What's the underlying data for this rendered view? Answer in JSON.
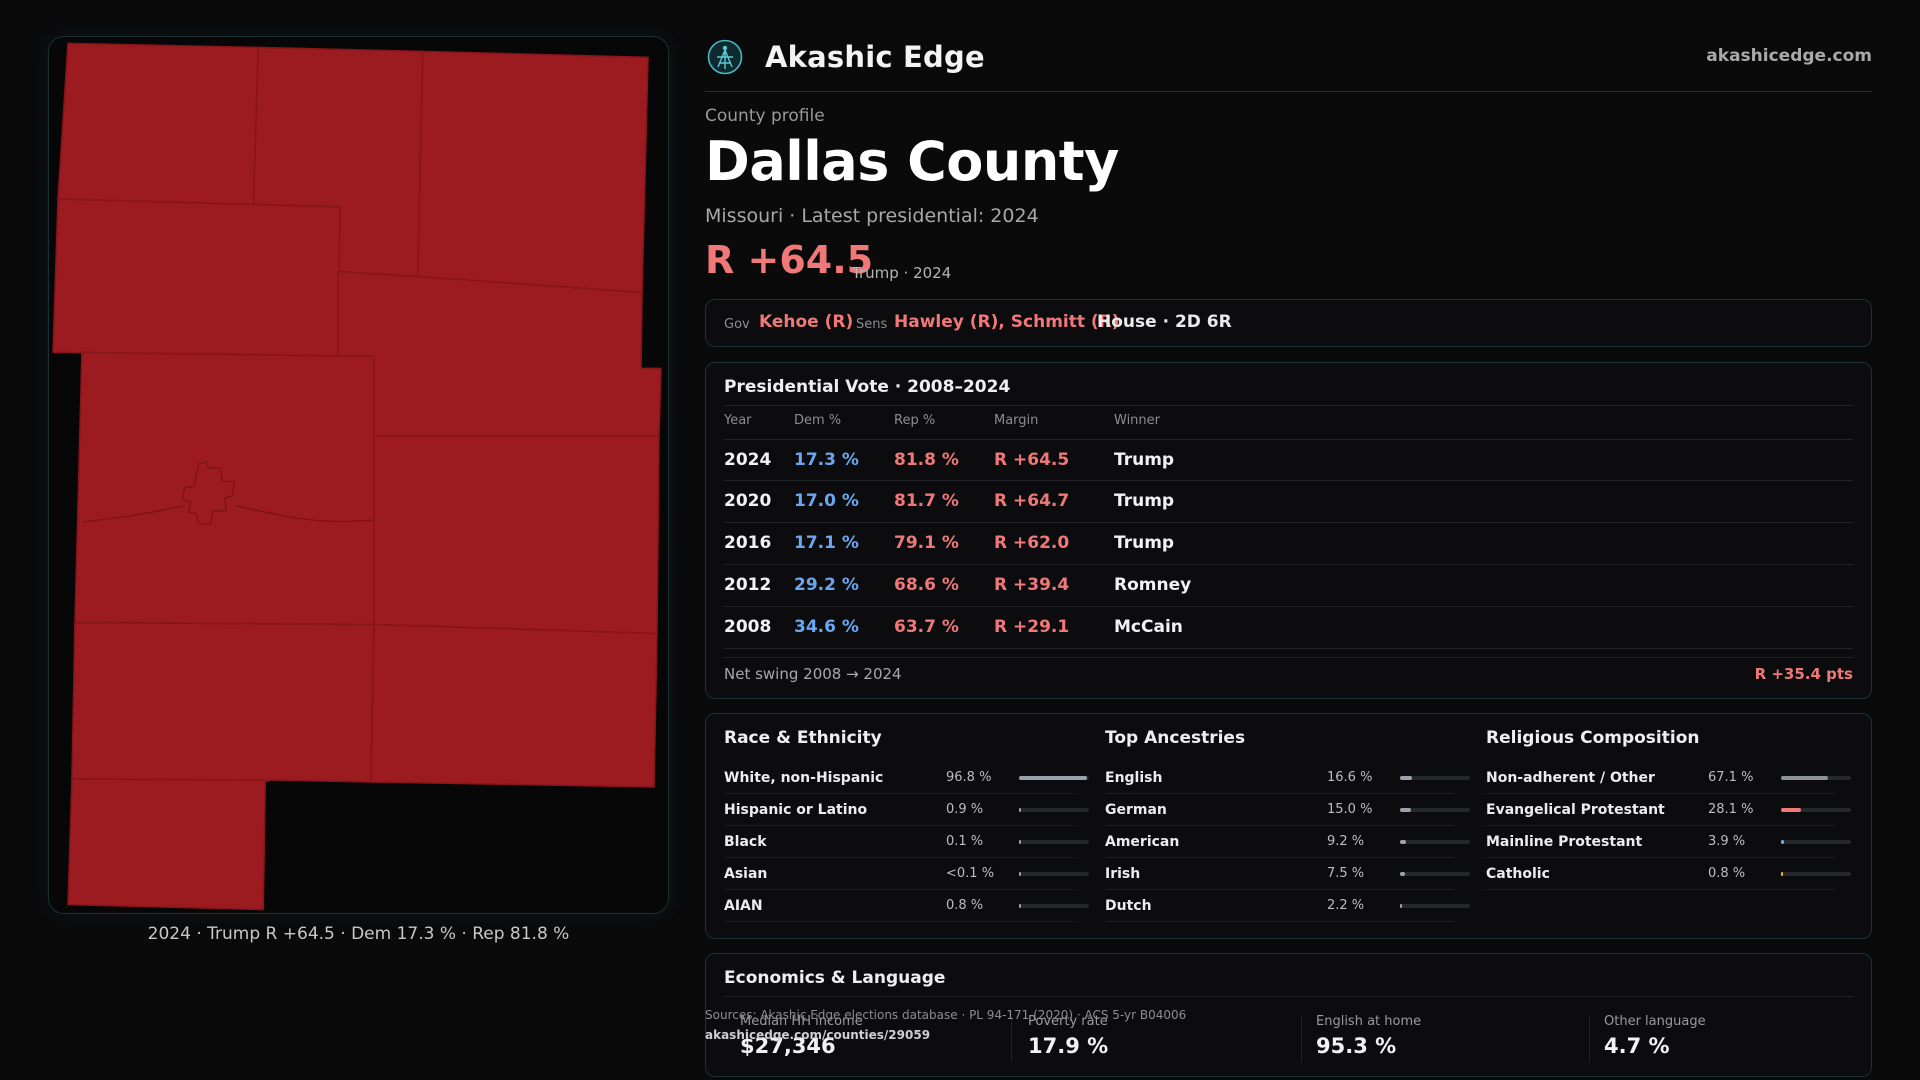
{
  "brand": {
    "name": "Akashic Edge",
    "site": "akashicedge.com"
  },
  "profile": {
    "kicker": "County profile",
    "county": "Dallas County",
    "subtitle": "Missouri · Latest presidential: 2024",
    "margin": "R +64.5",
    "margin_note": "Trump · 2024"
  },
  "officials": {
    "gov_label": "Gov",
    "gov": "Kehoe (R)",
    "sens_label": "Sens",
    "sens": "Hawley (R), Schmitt (R)",
    "house": "House · 2D 6R"
  },
  "presidential": {
    "title": "Presidential Vote · 2008–2024",
    "headers": {
      "year": "Year",
      "dem": "Dem %",
      "rep": "Rep %",
      "margin": "Margin",
      "winner": "Winner"
    },
    "rows": [
      {
        "year": "2024",
        "dem": "17.3 %",
        "rep": "81.8 %",
        "margin": "R +64.5",
        "winner": "Trump"
      },
      {
        "year": "2020",
        "dem": "17.0 %",
        "rep": "81.7 %",
        "margin": "R +64.7",
        "winner": "Trump"
      },
      {
        "year": "2016",
        "dem": "17.1 %",
        "rep": "79.1 %",
        "margin": "R +62.0",
        "winner": "Trump"
      },
      {
        "year": "2012",
        "dem": "29.2 %",
        "rep": "68.6 %",
        "margin": "R +39.4",
        "winner": "Romney"
      },
      {
        "year": "2008",
        "dem": "34.6 %",
        "rep": "63.7 %",
        "margin": "R +29.1",
        "winner": "McCain"
      }
    ],
    "swing_label": "Net swing 2008 → 2024",
    "swing_value": "R +35.4 pts"
  },
  "race": {
    "title": "Race & Ethnicity",
    "items": [
      {
        "name": "White, non-Hispanic",
        "pct": "96.8 %",
        "value": 96.8,
        "color": "#9aa3aa"
      },
      {
        "name": "Hispanic or Latino",
        "pct": "0.9 %",
        "value": 0.9,
        "color": "#9aa3aa"
      },
      {
        "name": "Black",
        "pct": "0.1 %",
        "value": 0.1,
        "color": "#9aa3aa"
      },
      {
        "name": "Asian",
        "pct": "<0.1 %",
        "value": 0.05,
        "color": "#9aa3aa"
      },
      {
        "name": "AIAN",
        "pct": "0.8 %",
        "value": 0.8,
        "color": "#9aa3aa"
      }
    ]
  },
  "ancestry": {
    "title": "Top Ancestries",
    "items": [
      {
        "name": "English",
        "pct": "16.6 %",
        "value": 16.6,
        "color": "#9aa3aa"
      },
      {
        "name": "German",
        "pct": "15.0 %",
        "value": 15.0,
        "color": "#9aa3aa"
      },
      {
        "name": "American",
        "pct": "9.2 %",
        "value": 9.2,
        "color": "#9aa3aa"
      },
      {
        "name": "Irish",
        "pct": "7.5 %",
        "value": 7.5,
        "color": "#9aa3aa"
      },
      {
        "name": "Dutch",
        "pct": "2.2 %",
        "value": 2.2,
        "color": "#9aa3aa"
      }
    ]
  },
  "religion": {
    "title": "Religious Composition",
    "items": [
      {
        "name": "Non-adherent / Other",
        "pct": "67.1 %",
        "value": 67.1,
        "color": "#8c9296"
      },
      {
        "name": "Evangelical Protestant",
        "pct": "28.1 %",
        "value": 28.1,
        "color": "#f07878"
      },
      {
        "name": "Mainline Protestant",
        "pct": "3.9 %",
        "value": 3.9,
        "color": "#6aa7f0"
      },
      {
        "name": "Catholic",
        "pct": "0.8 %",
        "value": 0.8,
        "color": "#e6b347"
      }
    ]
  },
  "economics": {
    "title": "Economics & Language",
    "stats": [
      {
        "label": "Median HH income",
        "value": "$27,346"
      },
      {
        "label": "Poverty rate",
        "value": "17.9 %"
      },
      {
        "label": "English at home",
        "value": "95.3 %"
      },
      {
        "label": "Other language",
        "value": "4.7 %"
      }
    ]
  },
  "sources": {
    "text": "Sources: Akashic Edge elections database · PL 94-171 (2020) · ACS 5-yr B04006",
    "url": "akashicedge.com/counties/29059"
  },
  "map": {
    "caption": "2024 · Trump R +64.5 · Dem 17.3 % · Rep 81.8 %",
    "fill_color": "#9b1b20"
  }
}
